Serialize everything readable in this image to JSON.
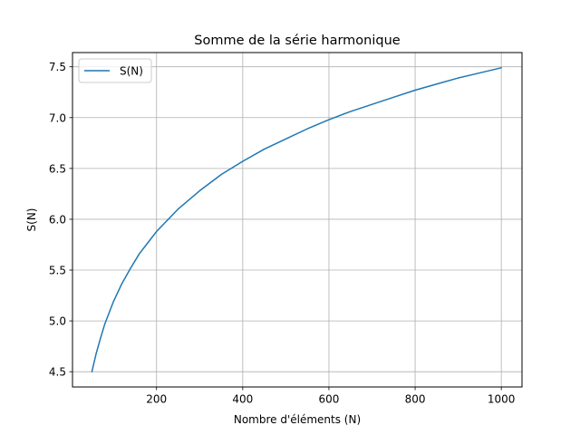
{
  "chart_data": {
    "type": "line",
    "title": "Somme de la série harmonique",
    "xlabel": "Nombre d'éléments (N)",
    "ylabel": "S(N)",
    "xlim": [
      5,
      1048
    ],
    "ylim": [
      4.35,
      7.64
    ],
    "xticks": [
      200,
      400,
      600,
      800,
      1000
    ],
    "yticks": [
      4.5,
      5.0,
      5.5,
      6.0,
      6.5,
      7.0,
      7.5
    ],
    "xtick_labels": [
      "200",
      "400",
      "600",
      "800",
      "1000"
    ],
    "ytick_labels": [
      "4.5",
      "5.0",
      "5.5",
      "6.0",
      "6.5",
      "7.0",
      "7.5"
    ],
    "grid": true,
    "legend_position": "upper-left",
    "series": [
      {
        "name": "S(N)",
        "color": "#1f77b4",
        "x": [
          50,
          60,
          70,
          80,
          90,
          100,
          120,
          140,
          160,
          180,
          200,
          250,
          300,
          350,
          400,
          450,
          500,
          550,
          600,
          650,
          700,
          750,
          800,
          850,
          900,
          950,
          1000
        ],
        "y": [
          4.5,
          4.68,
          4.83,
          4.97,
          5.08,
          5.19,
          5.37,
          5.52,
          5.66,
          5.77,
          5.88,
          6.1,
          6.28,
          6.44,
          6.57,
          6.69,
          6.79,
          6.89,
          6.98,
          7.06,
          7.13,
          7.2,
          7.27,
          7.33,
          7.39,
          7.44,
          7.49
        ]
      }
    ]
  }
}
